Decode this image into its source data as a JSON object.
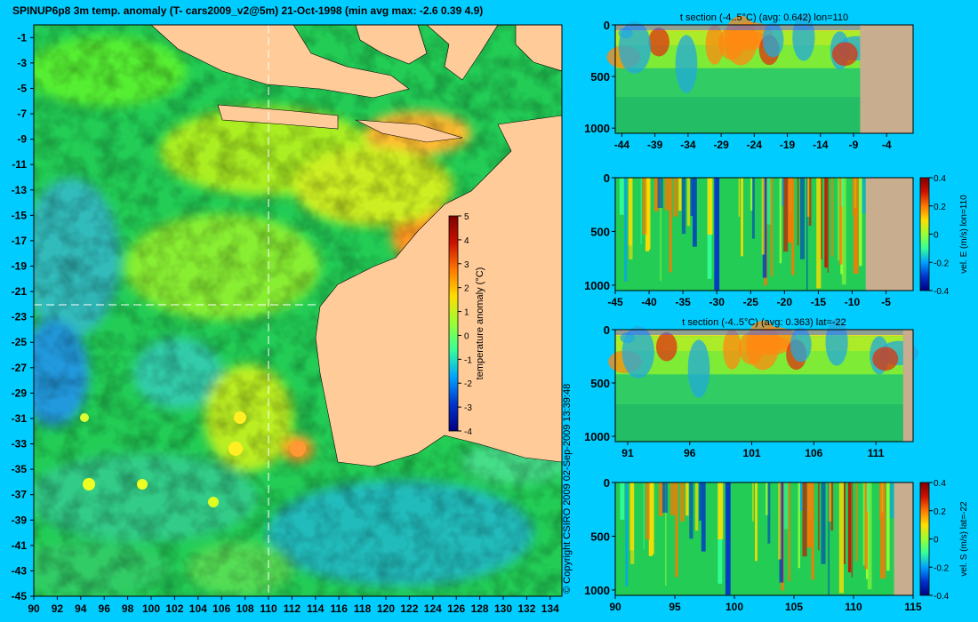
{
  "title": "SPINUP6p8 3m temp. anomaly (T- cars2009_v2@5m) 21-Oct-1998 (min avg max: -2.6 0.39 4.9)",
  "copyright": "© Copyright CSIRO 2009   02-Sep-2009 13:39:48",
  "colors": {
    "background": "#00ccff",
    "land": "#ffcc99",
    "section_land": "#c9ad8f",
    "colormap": [
      "#00007f",
      "#0033cc",
      "#00a2ff",
      "#33ff99",
      "#99ff33",
      "#ffdd00",
      "#ff7700",
      "#cc1100",
      "#7f0000"
    ]
  },
  "chart_data": [
    {
      "type": "heatmap",
      "panel": "map",
      "x_ticks": [
        "90",
        "92",
        "94",
        "96",
        "98",
        "100",
        "102",
        "104",
        "106",
        "108",
        "110",
        "112",
        "114",
        "116",
        "118",
        "120",
        "122",
        "124",
        "126",
        "128",
        "130",
        "132",
        "134"
      ],
      "y_ticks": [
        "-1",
        "-3",
        "-5",
        "-7",
        "-9",
        "-11",
        "-13",
        "-15",
        "-17",
        "-19",
        "-21",
        "-23",
        "-25",
        "-27",
        "-29",
        "-31",
        "-33",
        "-35",
        "-37",
        "-39",
        "-41",
        "-43",
        "-45"
      ],
      "xlim": [
        90,
        135
      ],
      "ylim": [
        -45,
        0
      ],
      "crosshair_lon": 110,
      "crosshair_lat": -22,
      "colorbar": {
        "label": "temperature anomaly (°C)",
        "ticks": [
          "5",
          "4",
          "3",
          "2",
          "1",
          "0",
          "-1",
          "-2",
          "-3",
          "-4"
        ],
        "range": [
          -4,
          5
        ]
      }
    },
    {
      "type": "heatmap",
      "panel": "t-section-lon110",
      "title": "t section (-4..5°C) (avg: 0.642) lon=110",
      "x_ticks": [
        "-44",
        "-39",
        "-34",
        "-29",
        "-24",
        "-19",
        "-14",
        "-9",
        "-4"
      ],
      "xlim": [
        -45,
        0
      ],
      "y_ticks": [
        "0",
        "500",
        "1000"
      ],
      "ylim": [
        1050,
        0
      ],
      "land_from": -8
    },
    {
      "type": "heatmap",
      "panel": "vel-east-lon110",
      "title": "",
      "x_ticks": [
        "-45",
        "-40",
        "-35",
        "-30",
        "-25",
        "-20",
        "-15",
        "-10",
        "-5"
      ],
      "xlim": [
        -45,
        -1
      ],
      "y_ticks": [
        "0",
        "500",
        "1000"
      ],
      "ylim": [
        1050,
        0
      ],
      "land_from": -8,
      "colorbar": {
        "label": "vel. E (m/s) lon=110",
        "ticks": [
          "0.4",
          "0.2",
          "0",
          "-0.2",
          "-0.4"
        ],
        "range": [
          -0.4,
          0.4
        ]
      }
    },
    {
      "type": "heatmap",
      "panel": "t-section-lat-22",
      "title": "t section (-4..5°C) (avg: 0.363) lat=-22",
      "x_ticks": [
        "91",
        "96",
        "101",
        "106",
        "111"
      ],
      "xlim": [
        90,
        114
      ],
      "y_ticks": [
        "0",
        "500",
        "1000"
      ],
      "ylim": [
        1050,
        0
      ],
      "land_from": 113.2
    },
    {
      "type": "heatmap",
      "panel": "vel-south-lat-22",
      "title": "",
      "x_ticks": [
        "90",
        "95",
        "100",
        "105",
        "110",
        "115"
      ],
      "xlim": [
        90,
        115
      ],
      "y_ticks": [
        "0",
        "500",
        "1000"
      ],
      "ylim": [
        1050,
        0
      ],
      "land_from": 113.4,
      "colorbar": {
        "label": "vel. S (m/s) lat=-22",
        "ticks": [
          "0.4",
          "0.2",
          "0",
          "-0.2",
          "-0.4"
        ],
        "range": [
          -0.4,
          0.4
        ]
      }
    }
  ]
}
